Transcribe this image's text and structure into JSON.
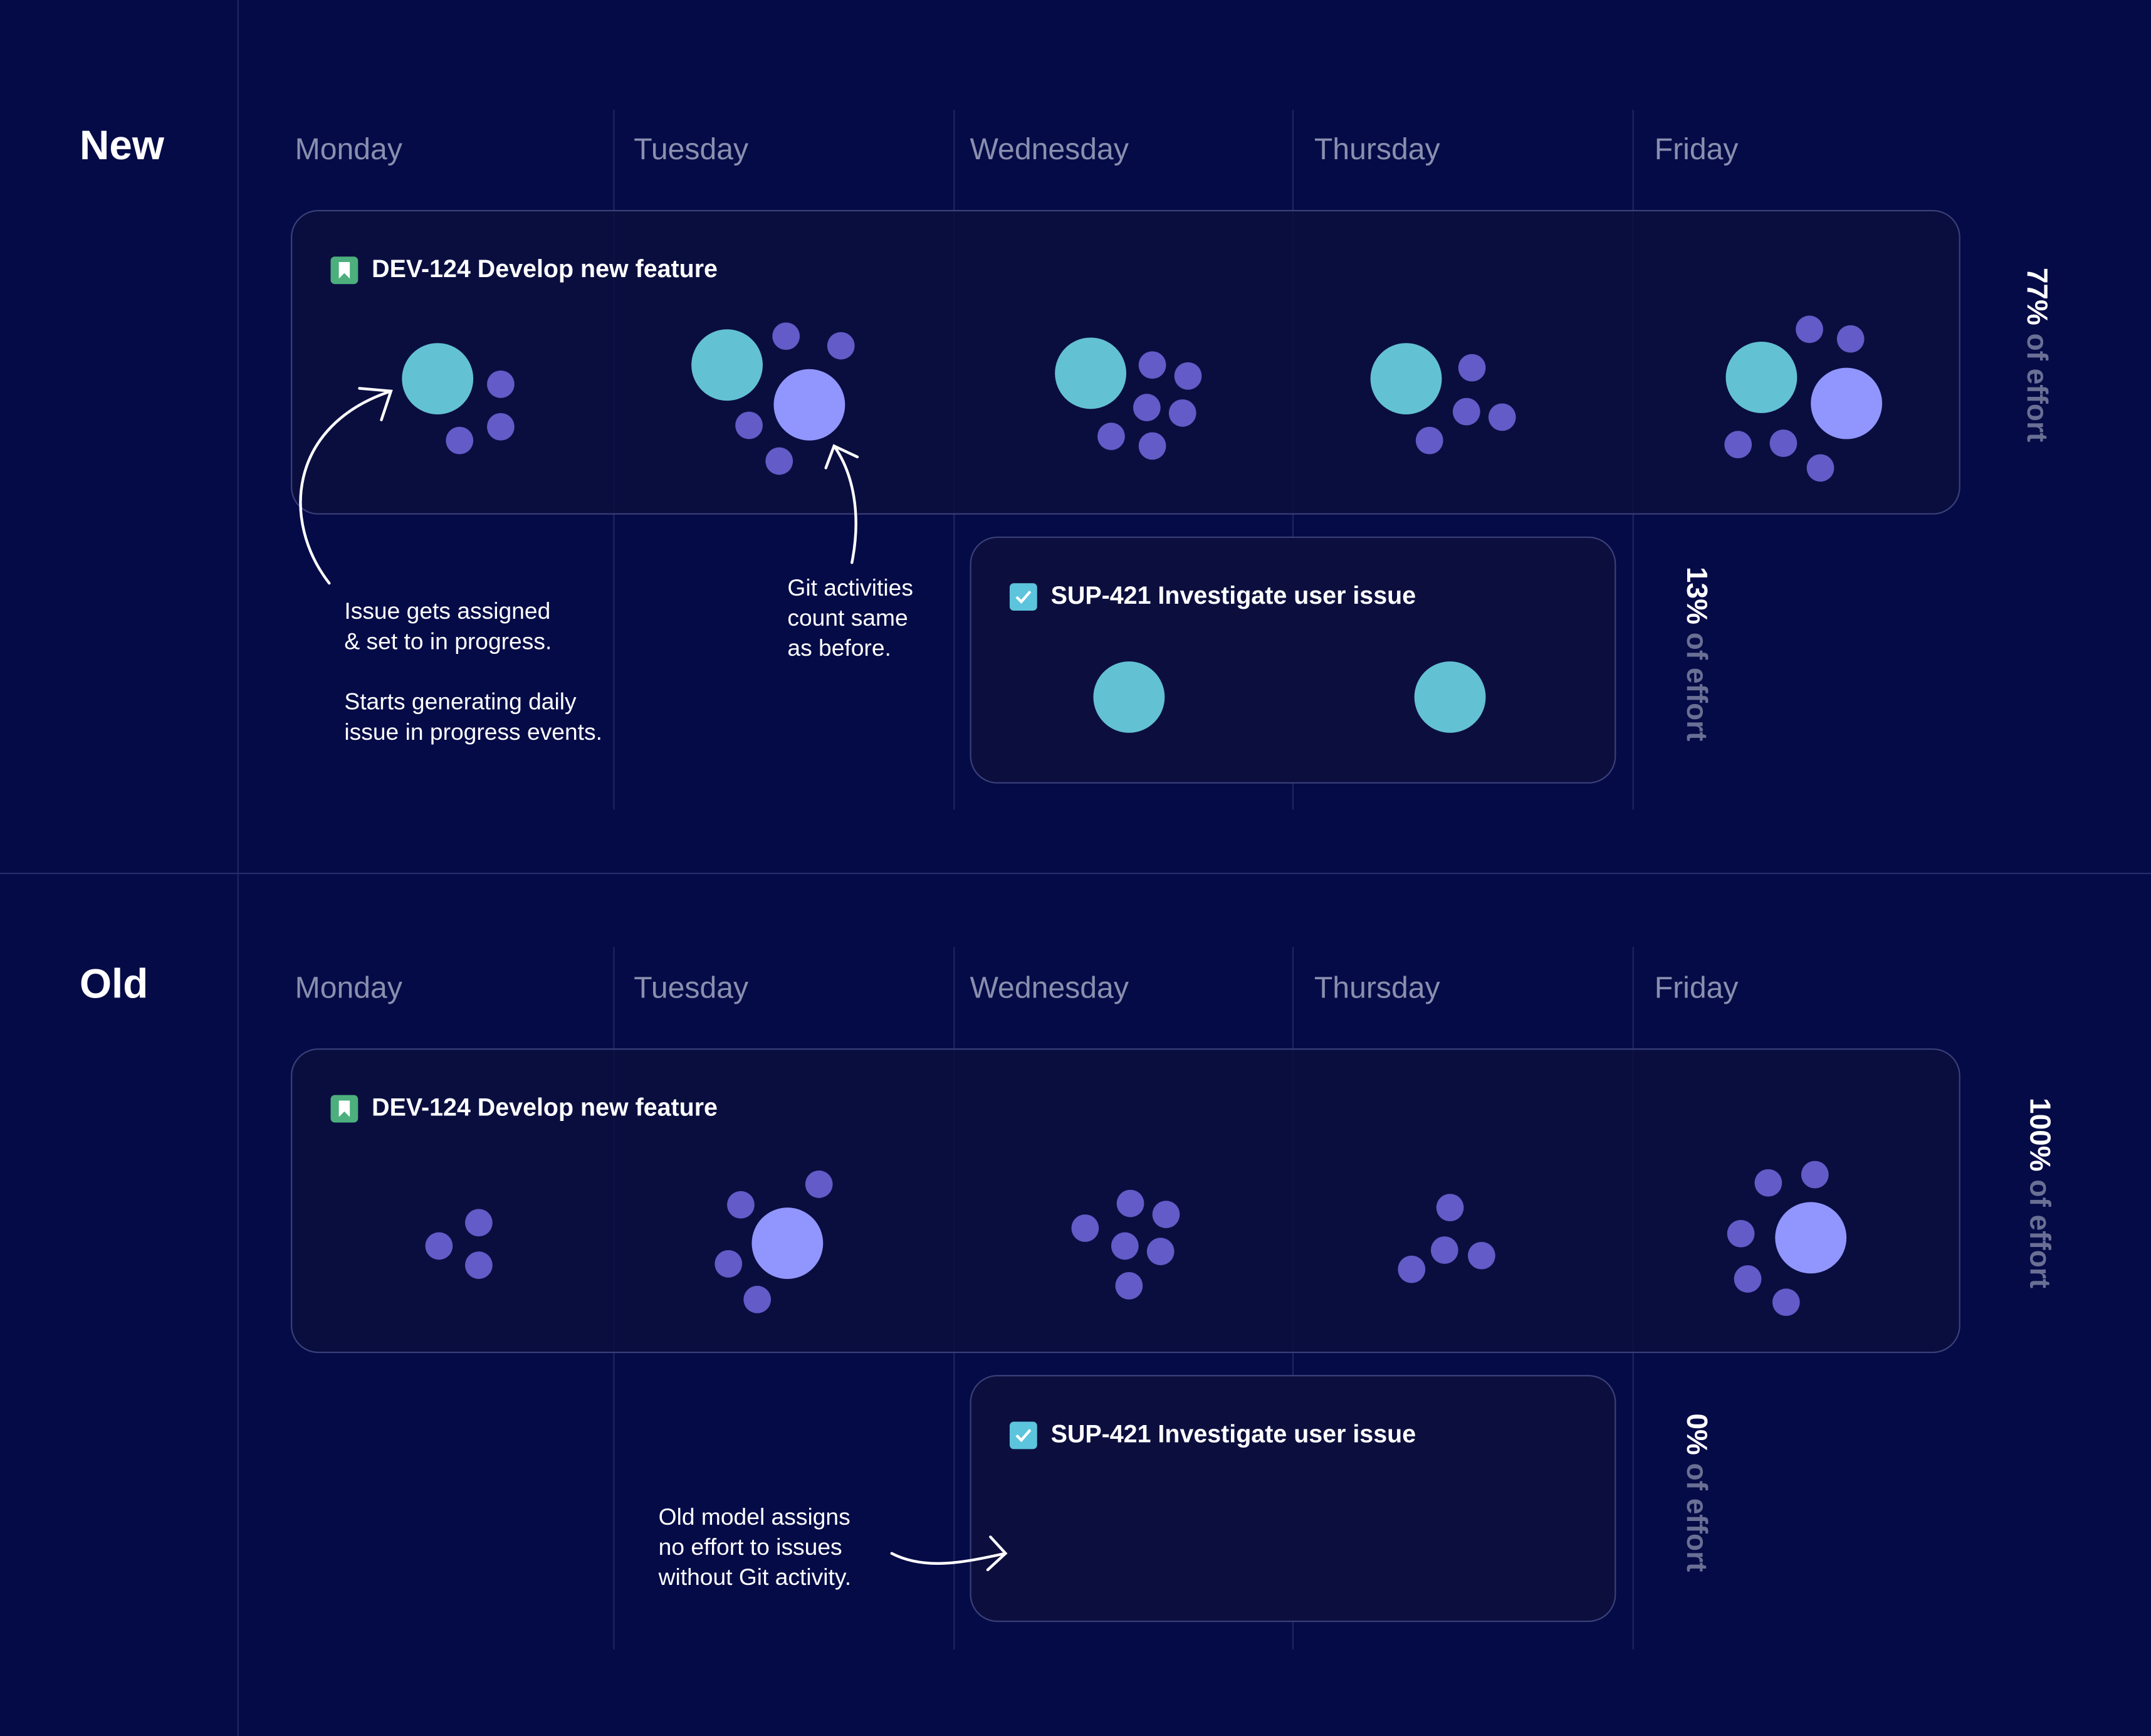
{
  "colors": {
    "background": "#050b47",
    "card": "#0c0f3e",
    "issue_event": "#63c1d4",
    "git_activity": "#635bc8",
    "git_activity_large": "#9196ff",
    "story_icon": "#4caf7d",
    "task_icon": "#5cc4dc"
  },
  "days": [
    "Monday",
    "Tuesday",
    "Wednesday",
    "Thursday",
    "Friday"
  ],
  "sections": [
    {
      "title": "New",
      "story": {
        "title": "DEV-124 Develop new feature",
        "icon": "bookmark-icon"
      },
      "task": {
        "title": "SUP-421 Investigate user issue",
        "icon": "checkbox-icon"
      },
      "story_effort": {
        "pct": "77%",
        "label": " of effort"
      },
      "task_effort": {
        "pct": "13%",
        "label": " of effort"
      },
      "notes": [
        "Issue gets assigned\n& set to in progress.\n\nStarts generating daily\nissue in progress events.",
        "Git activities\ncount same\nas before."
      ]
    },
    {
      "title": "Old",
      "story": {
        "title": "DEV-124 Develop new feature",
        "icon": "bookmark-icon"
      },
      "task": {
        "title": "SUP-421 Investigate user issue",
        "icon": "checkbox-icon"
      },
      "story_effort": {
        "pct": "100%",
        "label": " of effort"
      },
      "task_effort": {
        "pct": "0%",
        "label": " of effort"
      },
      "notes": [
        "Old model assigns\nno effort to issues\nwithout Git activity."
      ]
    }
  ]
}
